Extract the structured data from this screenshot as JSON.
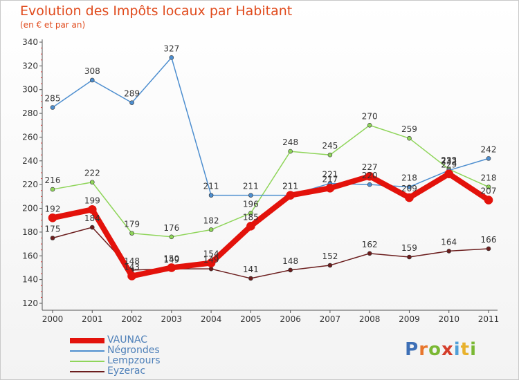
{
  "header": {
    "title": "Evolution des Impôts locaux par Habitant",
    "subtitle": "(en € et par an)"
  },
  "logo": {
    "text": "Proxiti",
    "colors": [
      "#3d6fb6",
      "#e8762c",
      "#7ab833",
      "#d43d2a",
      "#4f9fd8",
      "#e8b12c",
      "#7ab833"
    ]
  },
  "chart_data": {
    "type": "line",
    "title": "Evolution des Impôts locaux par Habitant",
    "subtitle": "(en € et par an)",
    "xlabel": "",
    "ylabel": "",
    "ylim": [
      120,
      340
    ],
    "yticks": [
      120,
      140,
      160,
      180,
      200,
      220,
      240,
      260,
      280,
      300,
      320,
      340
    ],
    "x": [
      "2000",
      "2001",
      "2002",
      "2003",
      "2004",
      "2005",
      "2006",
      "2007",
      "2008",
      "2009",
      "2010",
      "2011"
    ],
    "series": [
      {
        "name": "VAUNAC",
        "color": "#e3120b",
        "values": [
          192,
          199,
          143,
          150,
          154,
          185,
          211,
          217,
          227,
          209,
          229,
          207
        ]
      },
      {
        "name": "Négrondes",
        "color": "#4d8ecf",
        "values": [
          285,
          308,
          289,
          327,
          211,
          211,
          211,
          221,
          220,
          218,
          232,
          242
        ]
      },
      {
        "name": "Lempzours",
        "color": "#8fd55a",
        "values": [
          216,
          222,
          179,
          176,
          182,
          196,
          248,
          245,
          270,
          259,
          233,
          218
        ]
      },
      {
        "name": "Eyzerac",
        "color": "#6b1d1d",
        "values": [
          175,
          184,
          148,
          149,
          149,
          141,
          148,
          152,
          162,
          159,
          164,
          166
        ]
      }
    ],
    "legend": "bottom-left",
    "grid": false
  }
}
